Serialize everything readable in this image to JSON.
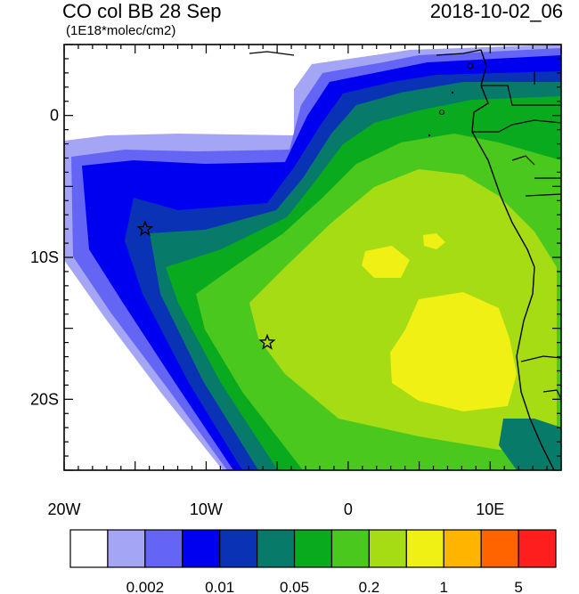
{
  "title": {
    "left": "CO col BB 28 Sep",
    "right": "2018-10-02_06",
    "units": "(1E18*molec/cm2)"
  },
  "axes": {
    "x_ticks": [
      {
        "value": -20,
        "label": "20W"
      },
      {
        "value": -10,
        "label": "10W"
      },
      {
        "value": 0,
        "label": "0"
      },
      {
        "value": 10,
        "label": "10E"
      }
    ],
    "y_ticks": [
      {
        "value": 0,
        "label": "0"
      },
      {
        "value": -10,
        "label": "10S"
      },
      {
        "value": -20,
        "label": "20S"
      }
    ],
    "lon_range": [
      -20,
      15
    ],
    "lat_range": [
      -25,
      5
    ]
  },
  "colorbar": {
    "colors": [
      "#ffffff",
      "#a5a5f5",
      "#6464f5",
      "#0000f0",
      "#0a32b4",
      "#087a6a",
      "#0aaa1e",
      "#4ac81e",
      "#a5dc14",
      "#f0f014",
      "#ffb400",
      "#ff6400",
      "#ff1e1e"
    ],
    "labels": [
      {
        "text": "0.002",
        "boundary": 2
      },
      {
        "text": "0.01",
        "boundary": 4
      },
      {
        "text": "0.05",
        "boundary": 6
      },
      {
        "text": "0.2",
        "boundary": 8
      },
      {
        "text": "1",
        "boundary": 10
      },
      {
        "text": "5",
        "boundary": 12
      }
    ]
  },
  "markers": [
    {
      "name": "star-marker-west",
      "lon": -14.3,
      "lat": -8.0
    },
    {
      "name": "star-marker-south",
      "lon": -5.7,
      "lat": -16.0
    }
  ]
}
